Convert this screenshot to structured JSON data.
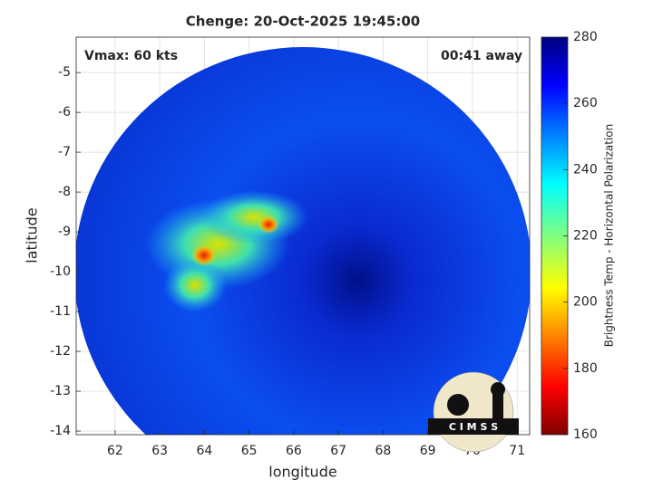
{
  "chart_data": {
    "type": "image",
    "title": "Chenge: 20-Oct-2025 19:45:00",
    "xlabel": "longitude",
    "ylabel": "latitude",
    "xlim": [
      61.13,
      71.28
    ],
    "ylim": [
      -14.09,
      -4.11
    ],
    "xticks": [
      62,
      63,
      64,
      65,
      66,
      67,
      68,
      69,
      70,
      71
    ],
    "yticks": [
      -14,
      -13,
      -12,
      -11,
      -10,
      -9,
      -8,
      -7,
      -6,
      -5
    ],
    "grid": true,
    "annotations": [
      "Vmax: 60 kts",
      "00:41 away"
    ],
    "logo": "C I M S S",
    "colorbar": {
      "label": "Brightness Temp - Horizontal Polarization",
      "lim": [
        160,
        280
      ],
      "ticks": [
        160,
        180,
        200,
        220,
        240,
        260,
        280
      ],
      "colormap": "jet"
    }
  }
}
